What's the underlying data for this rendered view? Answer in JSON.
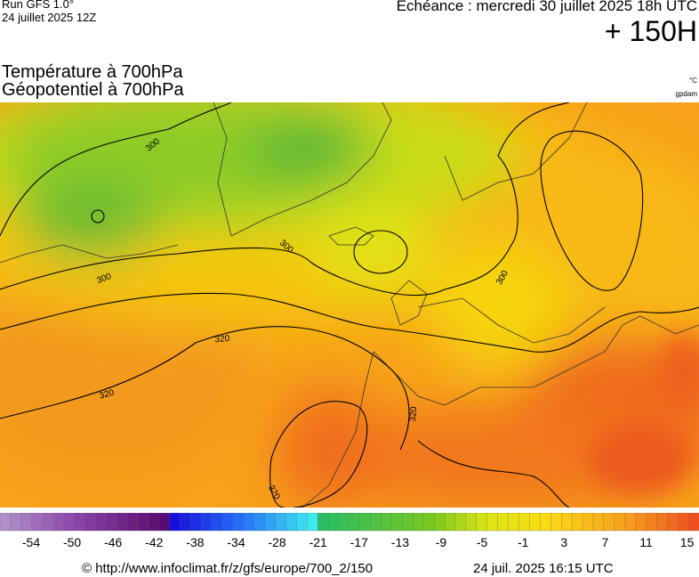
{
  "header": {
    "run": "Run GFS 1.0°",
    "run_date": "24 juillet 2025 12Z",
    "valid": "Echéance : mercredi 30 juillet 2025 18h UTC",
    "lead": "+ 150H"
  },
  "titles": {
    "temperature": "Température à 700hPa",
    "geopotential": "Géopotentiel à 700hPa"
  },
  "units": {
    "temperature": "°C",
    "geopotential": "gpdam"
  },
  "map": {
    "contour_labels": [
      "300",
      "300",
      "300",
      "300",
      "320",
      "320",
      "320",
      "320"
    ]
  },
  "colorbar": {
    "labels": [
      -54,
      -50,
      -46,
      -42,
      -38,
      -34,
      -28,
      -21,
      -17,
      -13,
      -9,
      -5,
      -1,
      3,
      7,
      11,
      15
    ]
  },
  "footer": {
    "source": "© http://www.infoclimat.fr/z/gfs/europe/700_2/150",
    "timestamp": "24 juil. 2025 16:15 UTC"
  }
}
